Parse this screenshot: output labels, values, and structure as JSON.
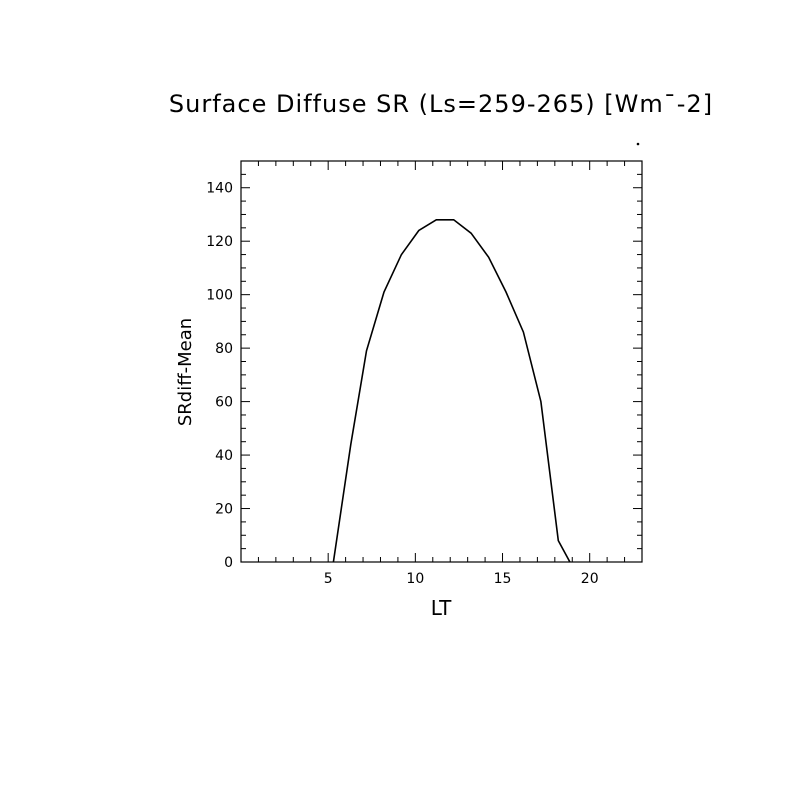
{
  "chart_data": {
    "type": "line",
    "title": "Surface Diffuse SR (Ls=259-265) [Wm¯-2]",
    "xlabel": "LT",
    "ylabel": "SRdiff-Mean",
    "xlim": [
      0,
      23
    ],
    "ylim": [
      0,
      150
    ],
    "xticks": [
      5,
      10,
      15,
      20
    ],
    "yticks": [
      0,
      20,
      40,
      60,
      80,
      100,
      120,
      140
    ],
    "grid": false,
    "series": [
      {
        "x": [
          5.3,
          6.3,
          7.2,
          8.2,
          9.2,
          10.2,
          11.2,
          12.2,
          13.2,
          14.2,
          15.2,
          16.2,
          17.2,
          18.2,
          19.2
        ],
        "y": [
          0,
          44,
          79,
          101,
          115,
          124,
          128,
          128,
          123,
          114,
          101,
          86,
          60,
          8,
          -4
        ]
      }
    ]
  }
}
